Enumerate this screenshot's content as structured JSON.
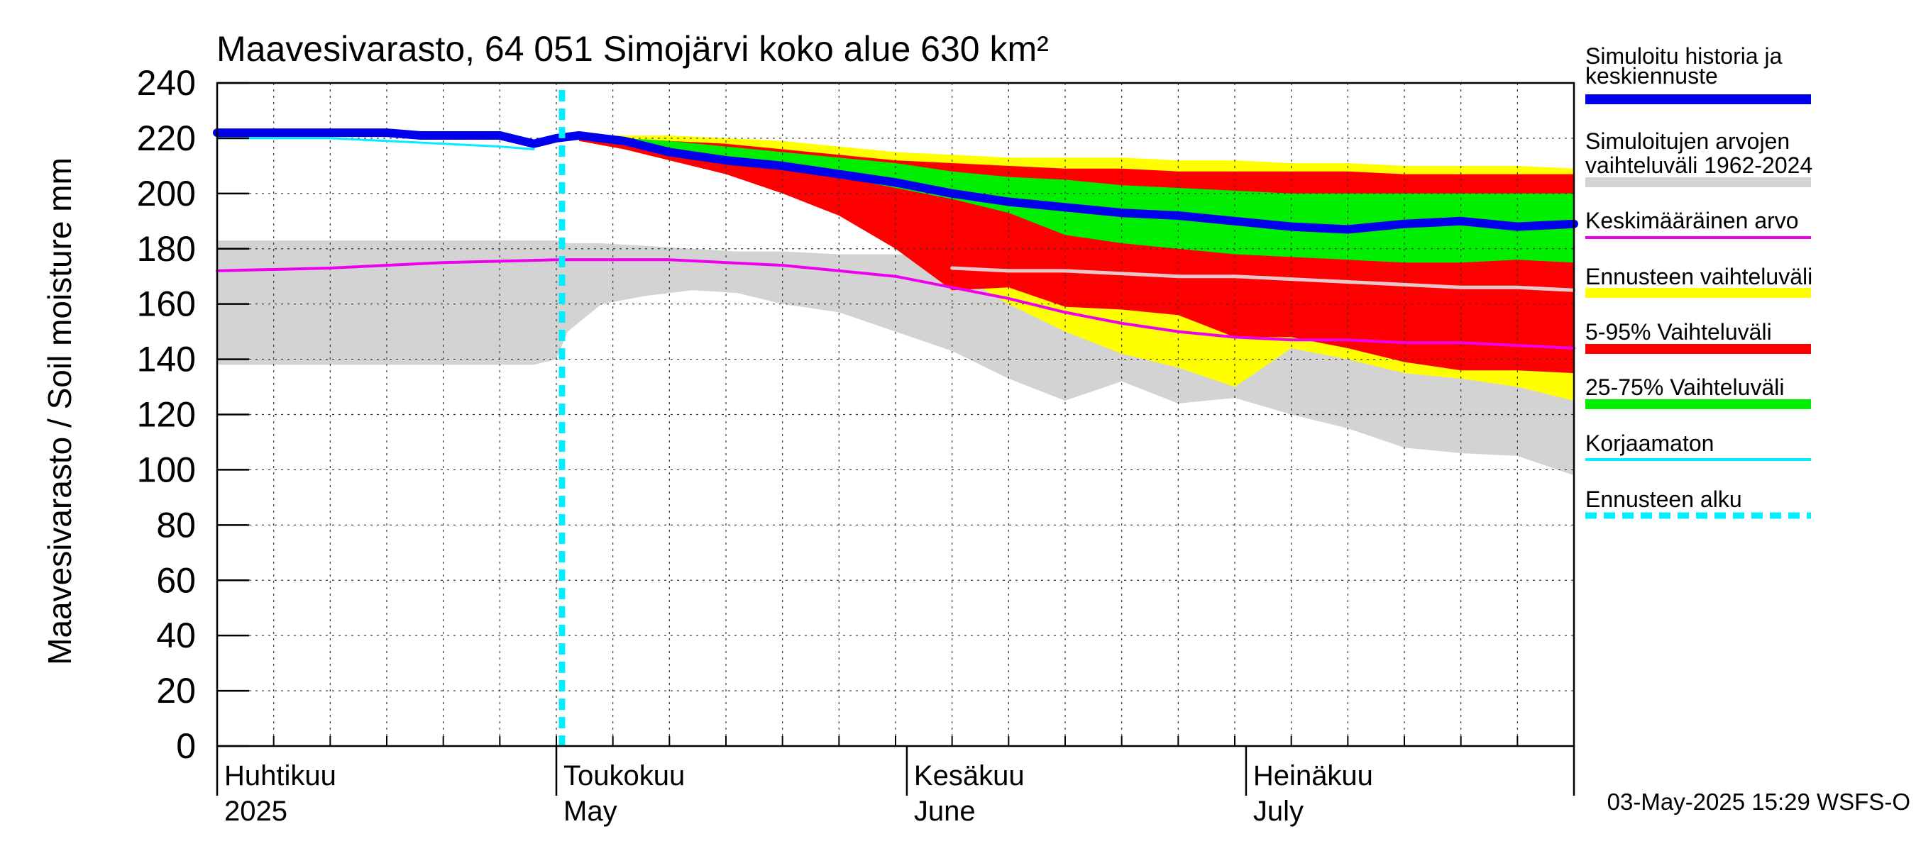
{
  "chart_data": {
    "type": "area",
    "title": "Maavesivarasto, 64 051 Simojärvi koko alue 630 km²",
    "ylabel": "Maavesivarasto / Soil moisture   mm",
    "ylim": [
      0,
      240
    ],
    "yticks": [
      "0",
      "20",
      "40",
      "60",
      "80",
      "100",
      "120",
      "140",
      "160",
      "180",
      "200",
      "220",
      "240"
    ],
    "x_domain_days": [
      0,
      120
    ],
    "x_axis_note": "day 0 = 2025-03-31, day 120 = 2025-07-29",
    "month_labels": [
      {
        "fi": "Huhtikuu",
        "en": "2025",
        "day": 1
      },
      {
        "fi": "Toukokuu",
        "en": "May",
        "day": 31
      },
      {
        "fi": "Kesäkuu",
        "en": "June",
        "day": 62
      },
      {
        "fi": "Heinäkuu",
        "en": "July",
        "day": 92
      }
    ],
    "forecast_start_day": 30.5,
    "grid": true,
    "series": [
      {
        "name": "hist_range",
        "kind": "band",
        "x": [
          0,
          10,
          20,
          28,
          30,
          31,
          34,
          38,
          42,
          46,
          50,
          55,
          60,
          65,
          70,
          75,
          80,
          85,
          90,
          95,
          100,
          105,
          110,
          115,
          120
        ],
        "lower": [
          138,
          138,
          138,
          138,
          140,
          150,
          160,
          163,
          165,
          164,
          160,
          157,
          150,
          143,
          133,
          125,
          132,
          124,
          126,
          120,
          115,
          108,
          106,
          105,
          98
        ],
        "upper": [
          183,
          183,
          183,
          183,
          183,
          182,
          182,
          181,
          180,
          179,
          179,
          178,
          178,
          177,
          177,
          176,
          176,
          175,
          175,
          174,
          174,
          173,
          172,
          171,
          170
        ]
      },
      {
        "name": "ennuste",
        "kind": "band",
        "x": [
          32,
          36,
          40,
          45,
          50,
          55,
          60,
          65,
          70,
          75,
          80,
          85,
          90,
          95,
          100,
          105,
          110,
          115,
          120
        ],
        "lower": [
          219,
          216,
          212,
          208,
          203,
          195,
          185,
          172,
          160,
          150,
          142,
          137,
          130,
          144,
          140,
          135,
          133,
          130,
          125
        ],
        "upper": [
          221,
          221,
          221,
          220,
          219,
          217,
          215,
          214,
          213,
          213,
          213,
          212,
          212,
          211,
          211,
          210,
          210,
          210,
          209
        ]
      },
      {
        "name": "p5_95",
        "kind": "band",
        "x": [
          32,
          36,
          40,
          45,
          50,
          55,
          60,
          65,
          70,
          75,
          80,
          85,
          90,
          95,
          100,
          105,
          110,
          115,
          120
        ],
        "lower": [
          219,
          216,
          212,
          207,
          200,
          192,
          180,
          165,
          166,
          159,
          158,
          156,
          148,
          148,
          144,
          139,
          136,
          136,
          135
        ],
        "upper": [
          221,
          220,
          219,
          218,
          216,
          214,
          212,
          211,
          210,
          209,
          209,
          208,
          208,
          208,
          208,
          207,
          207,
          207,
          207
        ]
      },
      {
        "name": "p25_75",
        "kind": "band",
        "x": [
          32,
          36,
          40,
          45,
          50,
          55,
          60,
          65,
          70,
          75,
          80,
          85,
          90,
          95,
          100,
          105,
          110,
          115,
          120
        ],
        "lower": [
          220,
          218,
          216,
          213,
          210,
          206,
          202,
          198,
          193,
          185,
          182,
          180,
          178,
          177,
          176,
          175,
          175,
          176,
          175
        ],
        "upper": [
          221,
          220,
          219,
          217,
          215,
          213,
          211,
          208,
          206,
          205,
          203,
          202,
          201,
          200,
          200,
          200,
          200,
          200,
          200
        ]
      },
      {
        "name": "median_forecast",
        "kind": "line",
        "x": [
          65,
          70,
          75,
          80,
          85,
          90,
          95,
          100,
          105,
          110,
          115,
          120
        ],
        "values": [
          173,
          172,
          172,
          171,
          170,
          170,
          169,
          168,
          167,
          166,
          166,
          165
        ]
      },
      {
        "name": "mean",
        "kind": "line",
        "x": [
          0,
          10,
          20,
          30,
          35,
          40,
          45,
          50,
          55,
          60,
          65,
          70,
          75,
          80,
          85,
          90,
          95,
          100,
          105,
          110,
          115,
          120
        ],
        "values": [
          172,
          173,
          175,
          176,
          176,
          176,
          175,
          174,
          172,
          170,
          166,
          162,
          157,
          153,
          150,
          148,
          147,
          147,
          146,
          146,
          145,
          144
        ]
      },
      {
        "name": "uncorrected",
        "kind": "line",
        "x": [
          0,
          5,
          10,
          15,
          20,
          25,
          28
        ],
        "values": [
          220,
          220,
          220,
          219,
          218,
          217,
          216
        ]
      },
      {
        "name": "simulated",
        "kind": "line",
        "x": [
          0,
          5,
          10,
          15,
          18,
          20,
          25,
          28,
          30,
          32,
          34,
          36,
          40,
          45,
          50,
          55,
          60,
          65,
          70,
          75,
          80,
          85,
          90,
          95,
          100,
          105,
          110,
          115,
          120
        ],
        "values": [
          222,
          222,
          222,
          222,
          221,
          221,
          221,
          218,
          220,
          221,
          220,
          219,
          215,
          212,
          210,
          207,
          204,
          200,
          197,
          195,
          193,
          192,
          190,
          188,
          187,
          189,
          190,
          188,
          189
        ]
      }
    ],
    "legend": {
      "position": "right",
      "items": [
        {
          "label1": "Simuloitu historia ja",
          "label2": "keskiennuste",
          "color": "#0000ee",
          "style": "thick"
        },
        {
          "label1": "Simuloitujen arvojen",
          "label2": "vaihteluväli 1962-2024",
          "color": "#d3d3d3",
          "style": "thick"
        },
        {
          "label1": "Keskimääräinen arvo",
          "label2": "",
          "color": "#ee00ee",
          "style": "line"
        },
        {
          "label1": "Ennusteen vaihteluväli",
          "label2": "",
          "color": "#ffff00",
          "style": "thick"
        },
        {
          "label1": "5-95% Vaihteluväli",
          "label2": "",
          "color": "#ff0000",
          "style": "thick"
        },
        {
          "label1": "25-75% Vaihteluväli",
          "label2": "",
          "color": "#00ee00",
          "style": "thick"
        },
        {
          "label1": "Korjaamaton",
          "label2": "",
          "color": "#00eeff",
          "style": "line"
        },
        {
          "label1": "Ennusteen alku",
          "label2": "",
          "color": "#00eeff",
          "style": "dashed"
        }
      ]
    },
    "footer": "03-May-2025 15:29 WSFS-O",
    "colors": {
      "hist": "#d3d3d3",
      "ennuste": "#ffff00",
      "p5_95": "#ff0000",
      "p25_75": "#00ee00",
      "median": "#e6c8cc",
      "mean": "#ee00ee",
      "uncorrected": "#00eeff",
      "simulated": "#0000ee",
      "forecast_line": "#00eeff"
    }
  }
}
